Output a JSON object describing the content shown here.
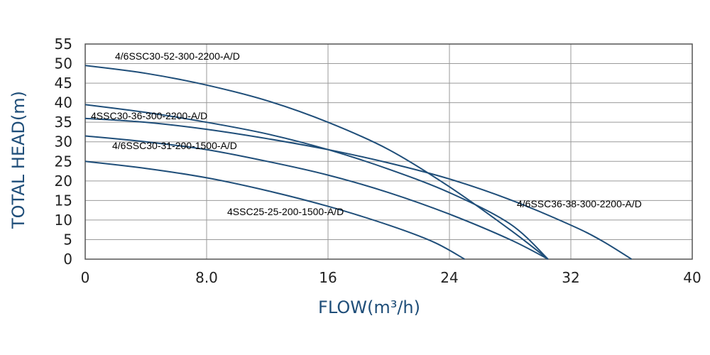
{
  "chart_data": {
    "type": "line",
    "title": "",
    "xlabel": "FLOW(m³/h)",
    "ylabel": "TOTAL HEAD(m)",
    "xlim": [
      0,
      40
    ],
    "ylim": [
      0,
      55
    ],
    "grid": true,
    "x_ticks": [
      {
        "value": 0,
        "label": "0"
      },
      {
        "value": 8,
        "label": "8.0"
      },
      {
        "value": 16,
        "label": "16"
      },
      {
        "value": 24,
        "label": "24"
      },
      {
        "value": 32,
        "label": "32"
      },
      {
        "value": 40,
        "label": "40"
      }
    ],
    "y_ticks": [
      {
        "value": 0,
        "label": "0"
      },
      {
        "value": 5,
        "label": "5"
      },
      {
        "value": 10,
        "label": "10"
      },
      {
        "value": 15,
        "label": "15"
      },
      {
        "value": 20,
        "label": "20"
      },
      {
        "value": 25,
        "label": "25"
      },
      {
        "value": 30,
        "label": "30"
      },
      {
        "value": 35,
        "label": "35"
      },
      {
        "value": 40,
        "label": "40"
      },
      {
        "value": 45,
        "label": "45"
      },
      {
        "value": 50,
        "label": "50"
      },
      {
        "value": 55,
        "label": "55"
      }
    ],
    "line_color": "#1f4e79",
    "series": [
      {
        "name": "4/6SSC30-52-300-2200-A/D",
        "points": [
          [
            0,
            49.5
          ],
          [
            4,
            47.5
          ],
          [
            8,
            44.5
          ],
          [
            12,
            40.5
          ],
          [
            16,
            35
          ],
          [
            20,
            28
          ],
          [
            24,
            18.5
          ],
          [
            28,
            7.5
          ],
          [
            30.5,
            0
          ]
        ]
      },
      {
        "name": "4SSC30-36-300-2200-A/D",
        "points": [
          [
            0,
            39.5
          ],
          [
            4,
            37.5
          ],
          [
            8,
            35
          ],
          [
            12,
            32
          ],
          [
            16,
            28
          ],
          [
            20,
            23
          ],
          [
            24,
            17
          ],
          [
            28,
            9
          ],
          [
            30.5,
            0
          ]
        ]
      },
      {
        "name": "4/6SSC30-31-200-1500-A/D",
        "points": [
          [
            0,
            31.5
          ],
          [
            4,
            30
          ],
          [
            8,
            28
          ],
          [
            12,
            25
          ],
          [
            16,
            21.5
          ],
          [
            20,
            17
          ],
          [
            24,
            11.5
          ],
          [
            28,
            5
          ],
          [
            30.5,
            0
          ]
        ]
      },
      {
        "name": "4SSC25-25-200-1500-A/D",
        "points": [
          [
            0,
            25
          ],
          [
            4,
            23.2
          ],
          [
            8,
            20.8
          ],
          [
            12,
            17.5
          ],
          [
            16,
            13.5
          ],
          [
            20,
            8.7
          ],
          [
            23,
            4.3
          ],
          [
            25,
            0
          ]
        ]
      },
      {
        "name": "4/6SSC36-38-300-2200-A/D",
        "points": [
          [
            0,
            36
          ],
          [
            4,
            35
          ],
          [
            8,
            33.2
          ],
          [
            12,
            30.8
          ],
          [
            16,
            28
          ],
          [
            20,
            24.6
          ],
          [
            24,
            20.5
          ],
          [
            28,
            15.2
          ],
          [
            32,
            8.7
          ],
          [
            34,
            4.8
          ],
          [
            36,
            0
          ]
        ]
      }
    ]
  }
}
